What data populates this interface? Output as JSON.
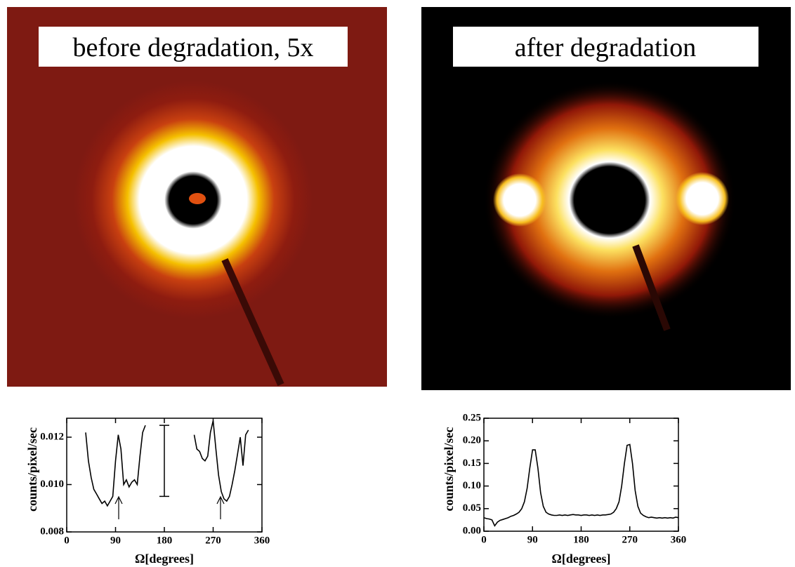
{
  "images": [
    {
      "label": "before degradation, 5x"
    },
    {
      "label": "after degradation"
    }
  ],
  "chart_data": [
    {
      "type": "line",
      "y_label": "counts/pixel/sec",
      "x_label": "Ω[degrees]",
      "xlim": [
        0,
        360
      ],
      "xticks": [
        0,
        90,
        180,
        270,
        360
      ],
      "ylim": [
        0.008,
        0.0128
      ],
      "yticks": [
        {
          "value": 0.008,
          "label": "0.008"
        },
        {
          "value": 0.01,
          "label": "0.010"
        },
        {
          "value": 0.012,
          "label": "0.012"
        }
      ],
      "x": [
        35,
        40,
        45,
        50,
        55,
        60,
        65,
        70,
        75,
        80,
        85,
        90,
        95,
        100,
        105,
        110,
        115,
        120,
        125,
        130,
        135,
        140,
        145,
        190,
        235,
        240,
        245,
        250,
        255,
        260,
        265,
        270,
        275,
        280,
        285,
        290,
        295,
        300,
        305,
        310,
        315,
        320,
        325,
        330,
        335
      ],
      "series": [
        {
          "color": "#000000",
          "values": [
            0.0122,
            0.011,
            0.0103,
            0.0098,
            0.0096,
            0.0094,
            0.0092,
            0.0093,
            0.0091,
            0.0093,
            0.0095,
            0.011,
            0.0121,
            0.0115,
            0.01,
            0.0102,
            0.0099,
            0.0101,
            0.0102,
            0.01,
            0.0112,
            0.0122,
            0.0125,
            null,
            0.0121,
            0.0115,
            0.0114,
            0.0111,
            0.011,
            0.0112,
            0.0122,
            0.0127,
            0.0115,
            0.0104,
            0.0097,
            0.0094,
            0.0093,
            0.0095,
            0.01,
            0.0106,
            0.0113,
            0.012,
            0.0108,
            0.0121,
            0.0123
          ]
        }
      ],
      "errorbar": {
        "x": 180,
        "value": 0.011,
        "error": 0.0015
      }
    },
    {
      "type": "line",
      "y_label": "counts/pixel/sec",
      "x_label": "Ω[degrees]",
      "xlim": [
        0,
        360
      ],
      "xticks": [
        0,
        90,
        180,
        270,
        360
      ],
      "ylim": [
        0,
        0.25
      ],
      "yticks": [
        {
          "value": 0,
          "label": "0.00"
        },
        {
          "value": 0.05,
          "label": "0.05"
        },
        {
          "value": 0.1,
          "label": "0.10"
        },
        {
          "value": 0.15,
          "label": "0.15"
        },
        {
          "value": 0.2,
          "label": "0.20"
        },
        {
          "value": 0.25,
          "label": "0.25"
        }
      ],
      "x": [
        0,
        5,
        10,
        15,
        20,
        25,
        30,
        35,
        40,
        45,
        50,
        55,
        60,
        65,
        70,
        75,
        80,
        85,
        90,
        95,
        100,
        105,
        110,
        115,
        120,
        125,
        130,
        135,
        140,
        145,
        150,
        155,
        160,
        165,
        170,
        175,
        180,
        185,
        190,
        195,
        200,
        205,
        210,
        215,
        220,
        225,
        230,
        235,
        240,
        245,
        250,
        255,
        260,
        265,
        270,
        275,
        280,
        285,
        290,
        295,
        300,
        305,
        310,
        315,
        320,
        325,
        330,
        335,
        340,
        345,
        350,
        355,
        360
      ],
      "series": [
        {
          "color": "#000000",
          "values": [
            0.03,
            0.028,
            0.027,
            0.025,
            0.012,
            0.02,
            0.024,
            0.026,
            0.028,
            0.03,
            0.033,
            0.035,
            0.038,
            0.042,
            0.05,
            0.065,
            0.095,
            0.14,
            0.18,
            0.18,
            0.14,
            0.085,
            0.055,
            0.042,
            0.038,
            0.036,
            0.035,
            0.035,
            0.036,
            0.035,
            0.036,
            0.035,
            0.036,
            0.037,
            0.036,
            0.036,
            0.035,
            0.036,
            0.036,
            0.035,
            0.036,
            0.035,
            0.036,
            0.035,
            0.036,
            0.036,
            0.037,
            0.038,
            0.042,
            0.05,
            0.065,
            0.1,
            0.15,
            0.19,
            0.192,
            0.15,
            0.09,
            0.055,
            0.04,
            0.035,
            0.032,
            0.03,
            0.031,
            0.03,
            0.029,
            0.03,
            0.029,
            0.03,
            0.029,
            0.03,
            0.029,
            0.031,
            0.03
          ]
        }
      ]
    }
  ]
}
